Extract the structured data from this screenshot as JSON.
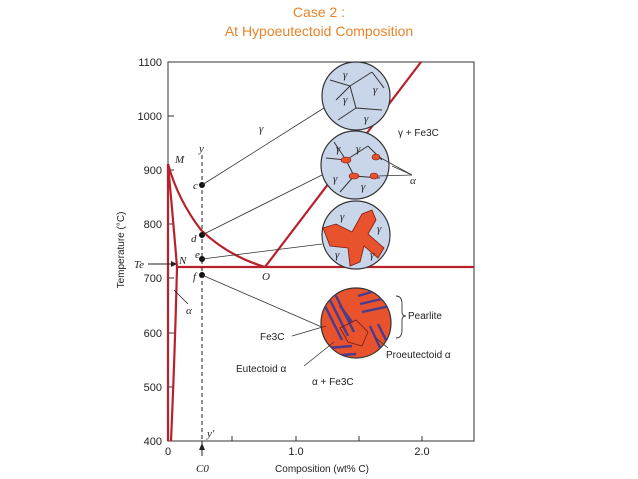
{
  "header": {
    "line1": "Case 2 :",
    "line2": "At Hypoeutectoid Composition"
  },
  "axes": {
    "y_label": "Temperature (°C)",
    "x_label": "Composition (wt% C)",
    "y_ticks": [
      "1100",
      "1000",
      "900",
      "800",
      "700",
      "600",
      "500",
      "400"
    ],
    "x_ticks": [
      "0",
      "1.0",
      "2.0"
    ]
  },
  "phase_labels": {
    "gamma": "γ",
    "gamma_fe3c": "γ + Fe3C",
    "alpha": "α",
    "alpha_fe3c": "α + Fe3C"
  },
  "points": {
    "M": "M",
    "N": "N",
    "O": "O",
    "Te": "Te",
    "c": "c",
    "d": "d",
    "e": "e",
    "f": "f",
    "y": "y",
    "y_prime": "y′",
    "C0": "C0"
  },
  "annotations": {
    "pearlite": "Pearlite",
    "fe3c": "Fe3C",
    "proeutectoid": "Proeutectoid α",
    "eutectoid": "Eutectoid α",
    "alpha_pointer": "α",
    "micro_gamma": "γ"
  },
  "colors": {
    "title": "#e8832a",
    "boundary": "#b8212b",
    "grain_fill": "#c9d6ea",
    "ferrite": "#e8532e"
  }
}
